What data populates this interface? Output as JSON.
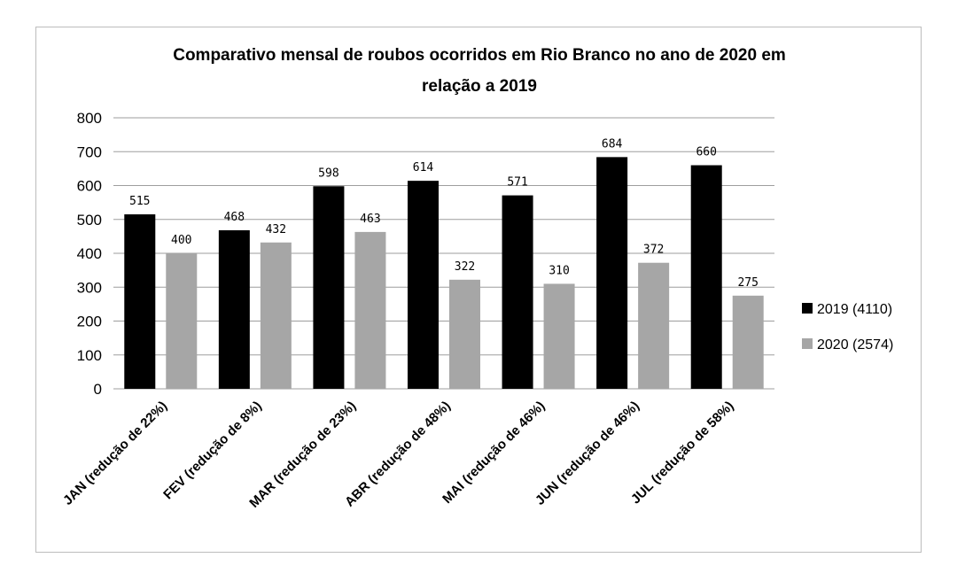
{
  "chart_data": {
    "type": "bar",
    "title": "Comparativo mensal de roubos ocorridos em Rio Branco no ano de 2020 em relação a 2019",
    "title_lines": [
      "Comparativo mensal de roubos ocorridos em Rio Branco no ano de 2020 em",
      "relação a 2019"
    ],
    "categories": [
      "JAN (redução de 22%)",
      "FEV (redução de 8%)",
      "MAR (redução de 23%)",
      "ABR (redução de 48%)",
      "MAI (redução de 46%)",
      "JUN (redução de 46%)",
      "JUL (redução de 58%)"
    ],
    "series": [
      {
        "name": "2019 (4110)",
        "color": "#000000",
        "values": [
          515,
          468,
          598,
          614,
          571,
          684,
          660
        ]
      },
      {
        "name": "2020 (2574)",
        "color": "#a6a6a6",
        "values": [
          400,
          432,
          463,
          322,
          310,
          372,
          275
        ]
      }
    ],
    "ylim": [
      0,
      800
    ],
    "yticks": [
      0,
      100,
      200,
      300,
      400,
      500,
      600,
      700,
      800
    ],
    "xlabel": "",
    "ylabel": "",
    "grid": true,
    "legend_position": "right"
  }
}
